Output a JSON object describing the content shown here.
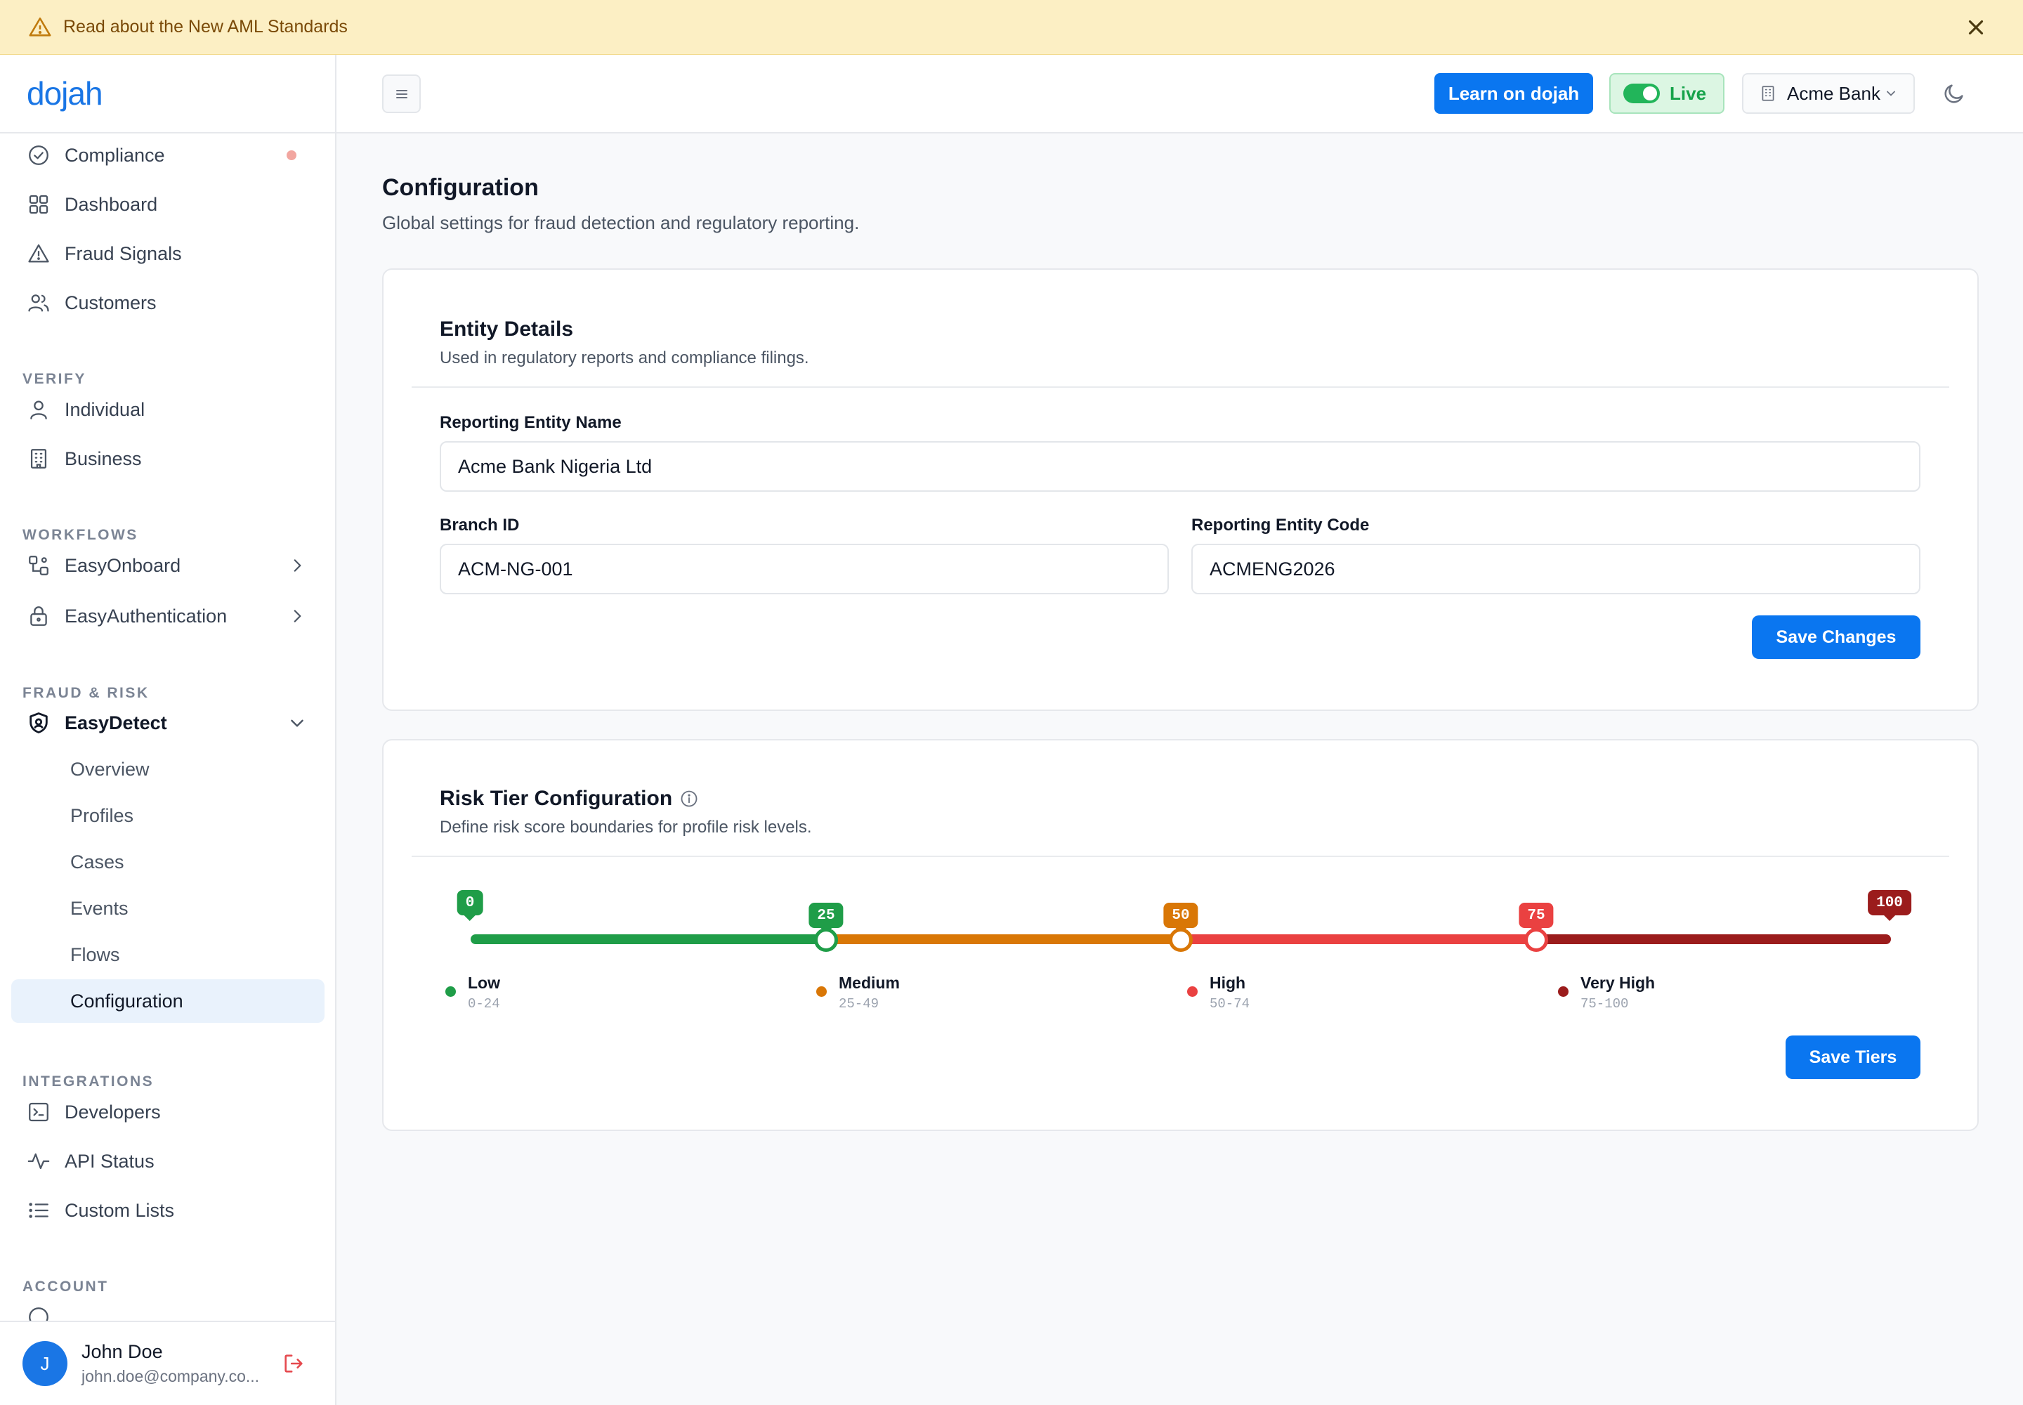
{
  "banner": {
    "text": "Read about the New AML Standards"
  },
  "brand": {
    "logo_text": "dojah",
    "accent": "#0a76f0"
  },
  "header": {
    "learn_button": "Learn on dojah",
    "live_label": "Live",
    "bank_selector": "Acme Bank"
  },
  "sidebar": {
    "top_items": [
      {
        "label": "Compliance",
        "icon": "check-circle-icon",
        "has_indicator": true
      },
      {
        "label": "Dashboard",
        "icon": "grid-icon"
      },
      {
        "label": "Fraud Signals",
        "icon": "warning-triangle-icon"
      },
      {
        "label": "Customers",
        "icon": "users-icon"
      }
    ],
    "sections": {
      "verify": "VERIFY",
      "workflows": "WORKFLOWS",
      "fraud_risk": "FRAUD & RISK",
      "integrations": "INTEGRATIONS",
      "account": "ACCOUNT"
    },
    "verify_items": [
      {
        "label": "Individual",
        "icon": "user-icon"
      },
      {
        "label": "Business",
        "icon": "building-icon"
      }
    ],
    "workflow_items": [
      {
        "label": "EasyOnboard",
        "icon": "workflow-icon"
      },
      {
        "label": "EasyAuthentication",
        "icon": "lock-icon"
      }
    ],
    "easydetect": {
      "label": "EasyDetect",
      "icon": "shield-icon",
      "children": [
        "Overview",
        "Profiles",
        "Cases",
        "Events",
        "Flows",
        "Configuration"
      ],
      "active": "Configuration"
    },
    "integration_items": [
      {
        "label": "Developers",
        "icon": "terminal-icon"
      },
      {
        "label": "API Status",
        "icon": "activity-icon"
      },
      {
        "label": "Custom Lists",
        "icon": "list-icon"
      }
    ]
  },
  "user": {
    "initial": "J",
    "name": "John Doe",
    "email": "john.doe@company.co..."
  },
  "page": {
    "title": "Configuration",
    "subtitle": "Global settings for fraud detection and regulatory reporting."
  },
  "entity_card": {
    "title": "Entity Details",
    "subtitle": "Used in regulatory reports and compliance filings.",
    "fields": {
      "entity_name": {
        "label": "Reporting Entity Name",
        "value": "Acme Bank Nigeria Ltd"
      },
      "branch_id": {
        "label": "Branch ID",
        "value": "ACM-NG-001"
      },
      "entity_code": {
        "label": "Reporting Entity Code",
        "value": "ACMENG2026"
      }
    },
    "save_button": "Save Changes"
  },
  "risk_card": {
    "title": "Risk Tier Configuration",
    "subtitle": "Define risk score boundaries for profile risk levels.",
    "boundaries": [
      "0",
      "25",
      "50",
      "75",
      "100"
    ],
    "tiers": [
      {
        "name": "Low",
        "range": "0-24",
        "color": "#1f9d48"
      },
      {
        "name": "Medium",
        "range": "25-49",
        "color": "#d97706"
      },
      {
        "name": "High",
        "range": "50-74",
        "color": "#ea4141"
      },
      {
        "name": "Very High",
        "range": "75-100",
        "color": "#9b1c1c"
      }
    ],
    "save_button": "Save Tiers"
  }
}
